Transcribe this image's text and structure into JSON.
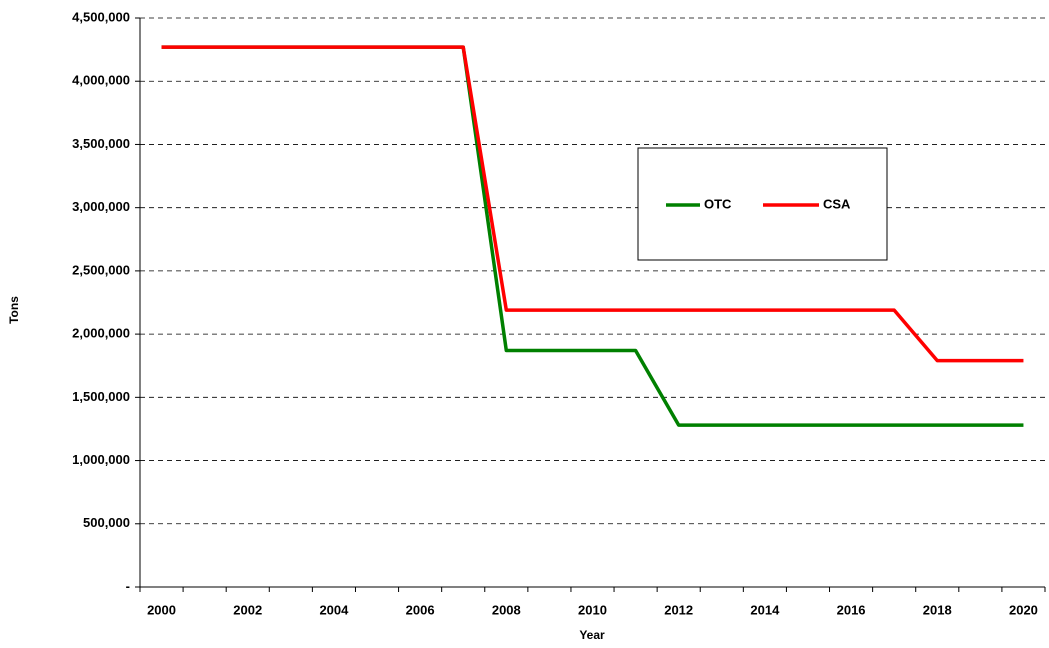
{
  "chart_data": {
    "type": "line",
    "x_label": "Year",
    "y_label": "Tons",
    "categories": [
      "2000",
      null,
      "2002",
      null,
      "2004",
      null,
      "2006",
      null,
      "2008",
      null,
      "2010",
      null,
      "2012",
      null,
      "2014",
      null,
      "2016",
      null,
      "2018",
      null,
      "2020"
    ],
    "series": [
      {
        "name": "OTC",
        "color": "#008000",
        "values": [
          4270000,
          4270000,
          4270000,
          4270000,
          4270000,
          4270000,
          4270000,
          4270000,
          1870000,
          1870000,
          1870000,
          1870000,
          1280000,
          1280000,
          1280000,
          1280000,
          1280000,
          1280000,
          1280000,
          1280000,
          1280000
        ]
      },
      {
        "name": "CSA",
        "color": "#ff0000",
        "values": [
          4270000,
          4270000,
          4270000,
          4270000,
          4270000,
          4270000,
          4270000,
          4270000,
          2190000,
          2190000,
          2190000,
          2190000,
          2190000,
          2190000,
          2190000,
          2190000,
          2190000,
          2190000,
          1790000,
          1790000,
          1790000
        ]
      }
    ],
    "ylim": [
      0,
      4500000
    ],
    "yticks": [
      {
        "value": 0,
        "label": "-"
      },
      {
        "value": 500000,
        "label": "500,000"
      },
      {
        "value": 1000000,
        "label": "1,000,000"
      },
      {
        "value": 1500000,
        "label": "1,500,000"
      },
      {
        "value": 2000000,
        "label": "2,000,000"
      },
      {
        "value": 2500000,
        "label": "2,500,000"
      },
      {
        "value": 3000000,
        "label": "3,000,000"
      },
      {
        "value": 3500000,
        "label": "3,500,000"
      },
      {
        "value": 4000000,
        "label": "4,000,000"
      },
      {
        "value": 4500000,
        "label": "4,500,000"
      }
    ],
    "grid": true
  }
}
